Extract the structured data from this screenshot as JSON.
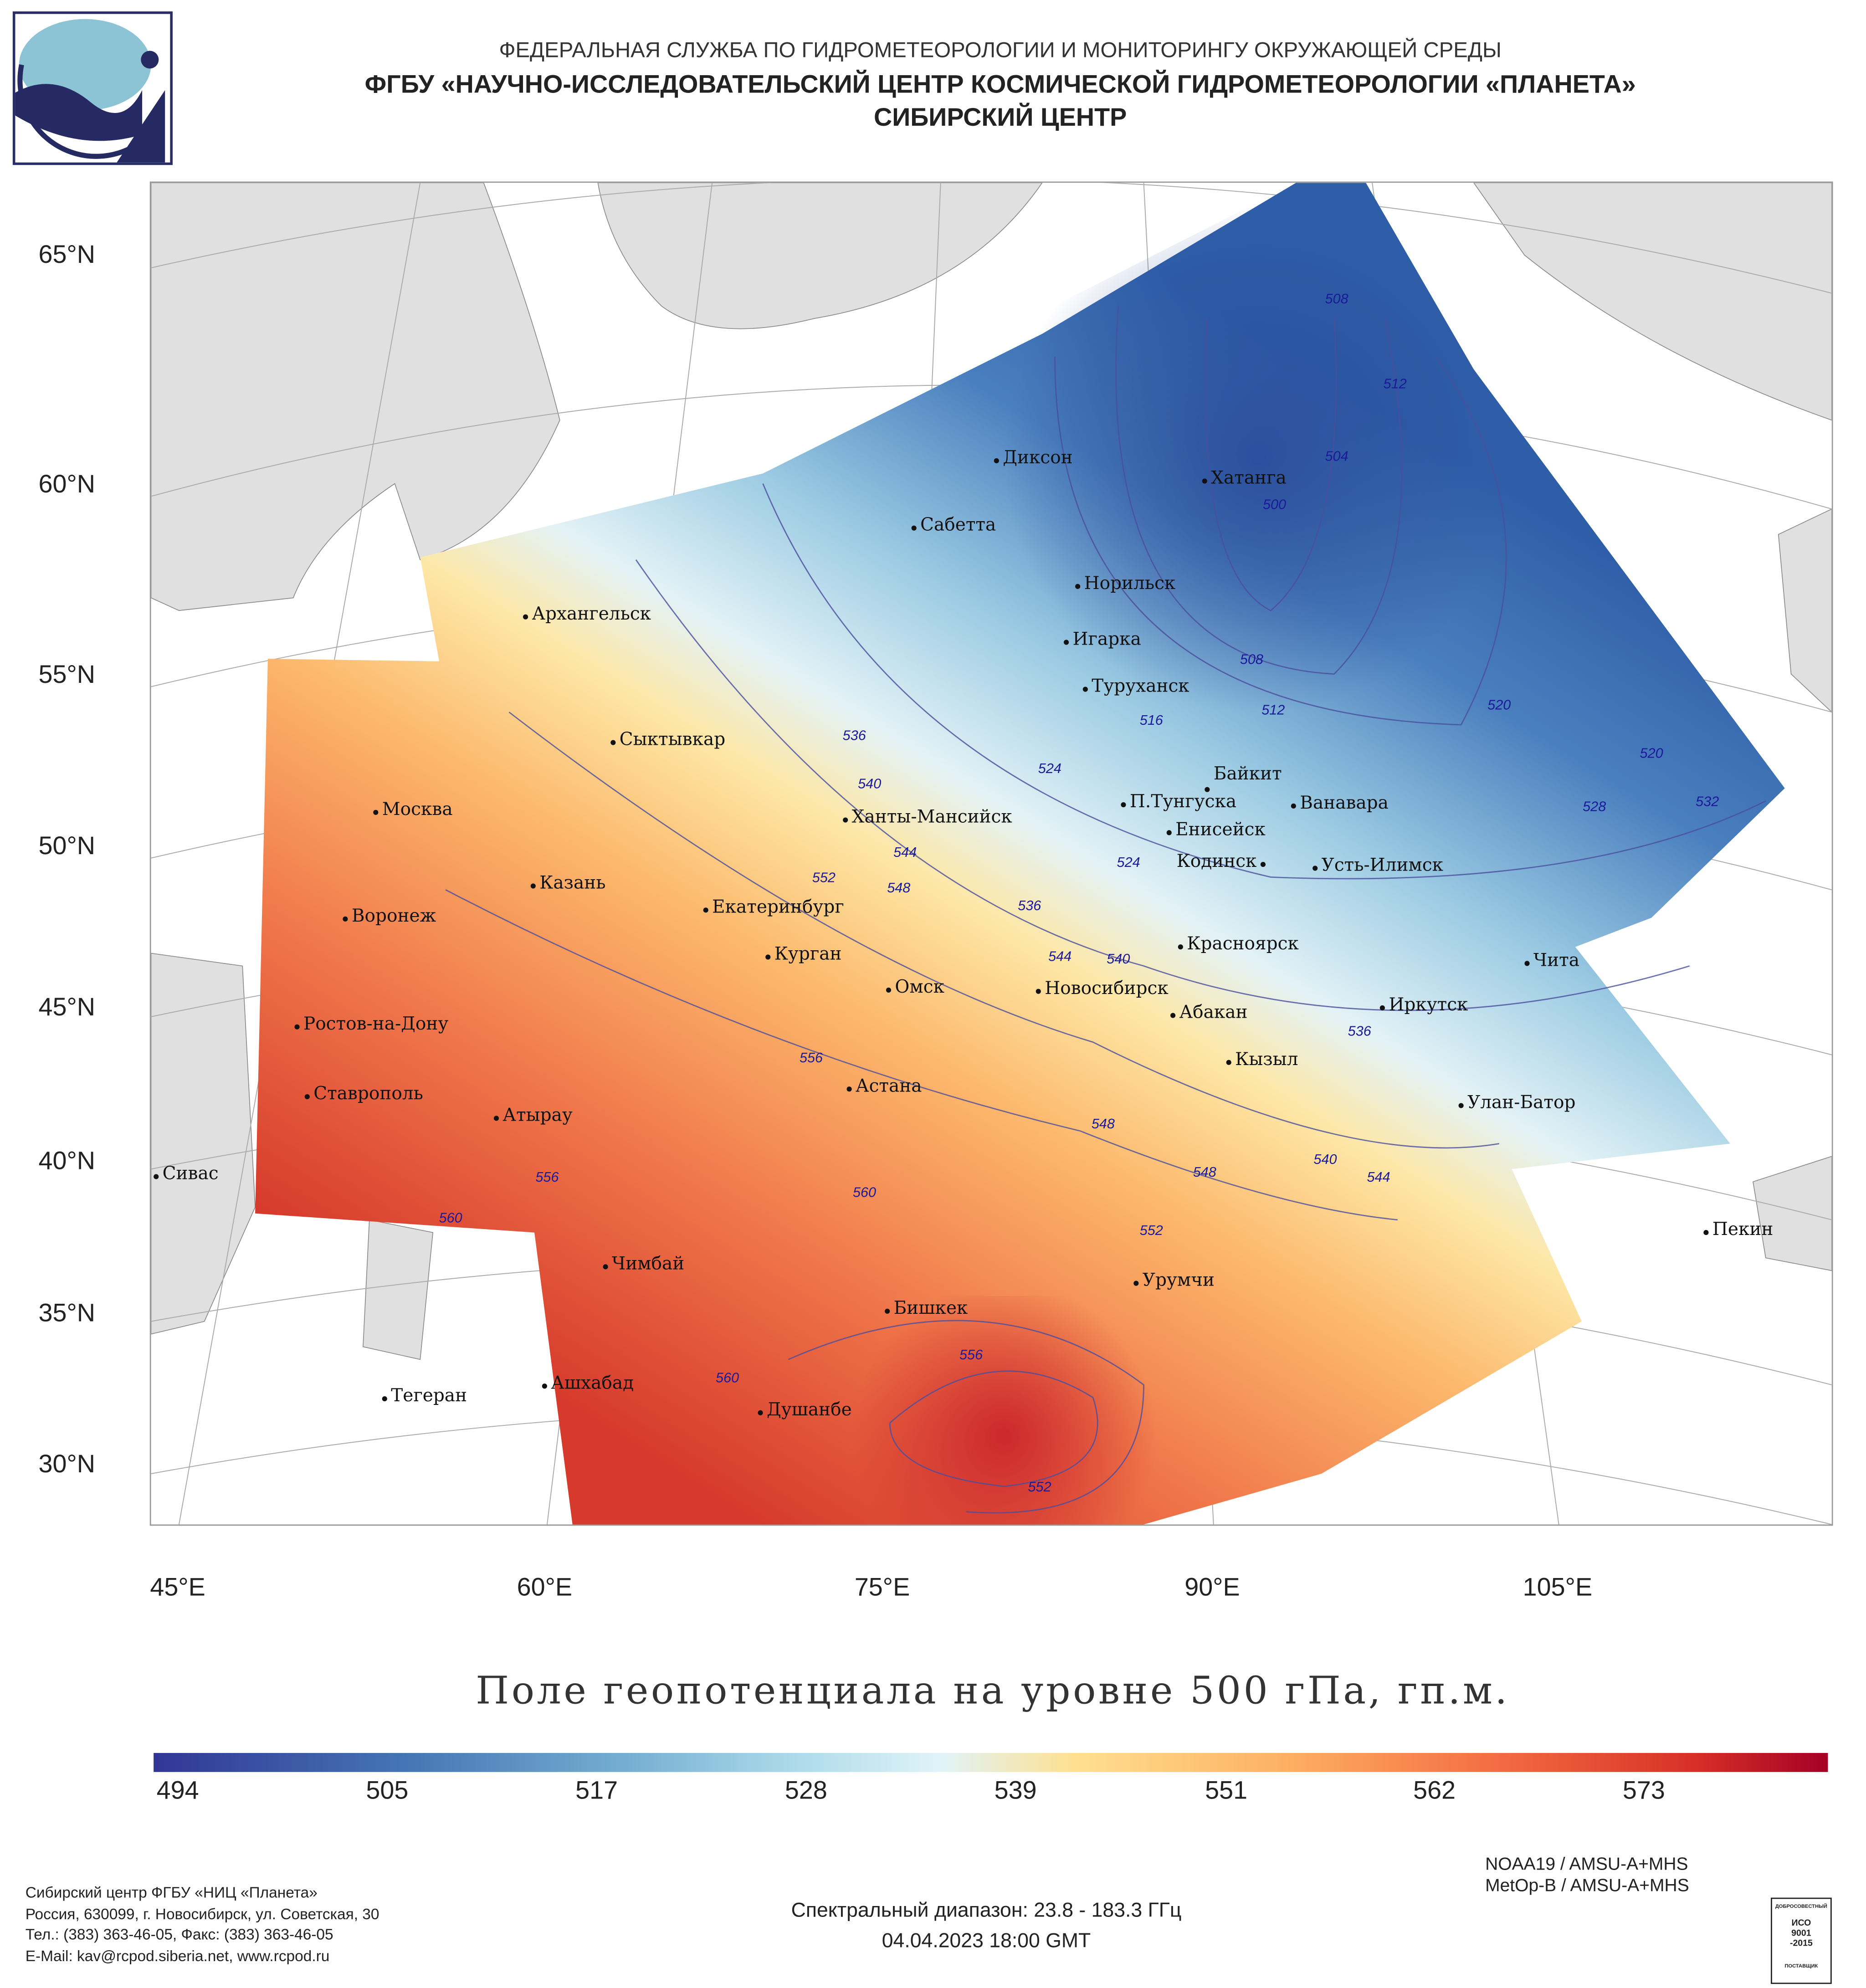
{
  "header": {
    "line1": "ФЕДЕРАЛЬНАЯ СЛУЖБА ПО ГИДРОМЕТЕОРОЛОГИИ И МОНИТОРИНГУ ОКРУЖАЮЩЕЙ СРЕДЫ",
    "line2": "ФГБУ «НАУЧНО-ИССЛЕДОВАТЕЛЬСКИЙ ЦЕНТР КОСМИЧЕСКОЙ ГИДРОМЕТЕОРОЛОГИИ «ПЛАНЕТА»",
    "line3": "СИБИРСКИЙ ЦЕНТР"
  },
  "map": {
    "lat_labels": [
      "65°N",
      "60°N",
      "55°N",
      "50°N",
      "45°N",
      "40°N",
      "35°N",
      "30°N"
    ],
    "lon_labels": [
      "45°E",
      "60°E",
      "75°E",
      "90°E",
      "105°E"
    ],
    "cities": [
      "Диксон",
      "Хатанга",
      "Сабетта",
      "Норильск",
      "Игарка",
      "Туруханск",
      "Байкит",
      "П.Тунгуска",
      "Ванавара",
      "Енисейск",
      "Кодинск",
      "Усть-Илимск",
      "Архангельск",
      "Сыктывкар",
      "Москва",
      "Ханты-Мансийск",
      "Казань",
      "Воронеж",
      "Екатеринбург",
      "Курган",
      "Омск",
      "Новосибирск",
      "Красноярск",
      "Абакан",
      "Кызыл",
      "Иркутск",
      "Чита",
      "Ростов-на-Дону",
      "Ставрополь",
      "Атырау",
      "Астана",
      "Улан-Батор",
      "Сивас",
      "Чимбай",
      "Бишкек",
      "Урумчи",
      "Пекин",
      "Ашхабад",
      "Тегеран",
      "Душанбе"
    ],
    "contour_labels": [
      "508",
      "512",
      "504",
      "500",
      "508",
      "512",
      "520",
      "516",
      "524",
      "536",
      "540",
      "544",
      "548",
      "524",
      "528",
      "532",
      "520",
      "536",
      "544",
      "540",
      "536",
      "552",
      "556",
      "548",
      "540",
      "544",
      "548",
      "552",
      "556",
      "560",
      "560",
      "556",
      "560",
      "552"
    ]
  },
  "title": "Поле геопотенциала на уровне 500 гПа, гп.м.",
  "colorbar": {
    "labels": [
      "494",
      "505",
      "517",
      "528",
      "539",
      "551",
      "562",
      "573"
    ],
    "colors": [
      "#313695",
      "#4575b4",
      "#74add1",
      "#abd9e9",
      "#e0f3f8",
      "#fee090",
      "#fdae61",
      "#f46d43",
      "#d73027",
      "#a50026"
    ]
  },
  "footer": {
    "org": [
      "Сибирский центр ФГБУ «НИЦ «Планета»",
      "Россия, 630099, г. Новосибирск, ул. Советская, 30",
      "Тел.: (383) 363-46-05, Факс: (383) 363-46-05",
      "E-Mail: kav@rcpod.siberia.net, www.rcpod.ru"
    ],
    "satellites": [
      "NOAA19 / AMSU-A+MHS",
      "MetOp-B / AMSU-A+MHS"
    ],
    "spectral": "Спектральный диапазон: 23.8 - 183.3 ГГц",
    "datetime": "04.04.2023 18:00 GMT",
    "iso": {
      "top": "ДОБРОСОВЕСТНЫЙ",
      "mid": "ИСО 9001 -2015",
      "bottom": "ПОСТАВЩИК"
    }
  }
}
